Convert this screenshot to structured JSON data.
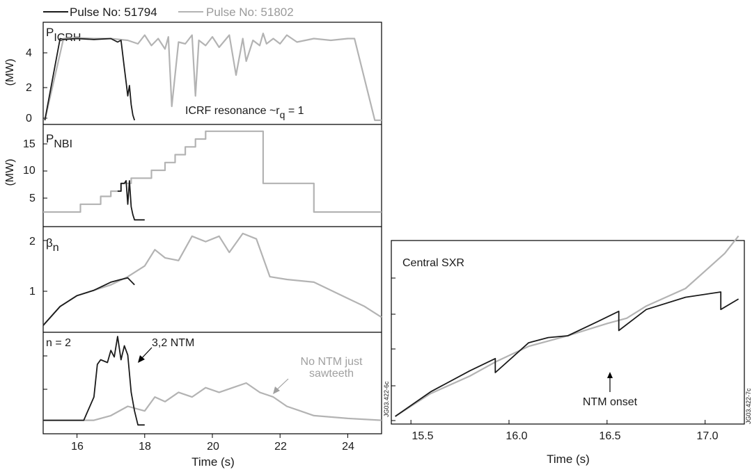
{
  "legend": {
    "pulse_a": "Pulse No: 51794",
    "pulse_b": "Pulse No: 51802"
  },
  "colors": {
    "pulse_a": "#1a1a1a",
    "pulse_b": "#b3b3b3"
  },
  "left_figure": {
    "xlabel": "Time (s)",
    "xticks": [
      "16",
      "18",
      "20",
      "22",
      "24"
    ],
    "xlim": [
      15,
      25
    ],
    "side_label": "JG03.422-6c",
    "panels": [
      {
        "title_main": "P",
        "title_sub": "ICRH",
        "ylabel": "(MW)",
        "yticks": [
          "0",
          "2",
          "4"
        ],
        "annotation": "ICRF resonance ~r",
        "annotation_sub": "q",
        "annotation_tail": " = 1"
      },
      {
        "title_main": "P",
        "title_sub": "NBI",
        "ylabel": "(MW)",
        "yticks": [
          "5",
          "10",
          "15"
        ]
      },
      {
        "title_main": "β",
        "title_sub": "n",
        "yticks": [
          "1",
          "2"
        ]
      },
      {
        "title_main": "n = 2",
        "title_sub": "",
        "annotation_a": "3,2 NTM",
        "annotation_b_line1": "No NTM just",
        "annotation_b_line2": "sawteeth"
      }
    ]
  },
  "right_figure": {
    "title": "Central SXR",
    "xlabel": "Time (s)",
    "xticks": [
      "15.5",
      "16.0",
      "16.5",
      "17.0"
    ],
    "annotation": "NTM onset",
    "side_label": "JG03.422-7c"
  },
  "chart_data": [
    {
      "type": "line",
      "title": "P ICRH",
      "ylabel": "(MW)",
      "xlim": [
        15,
        25
      ],
      "ylim": [
        0,
        5.4
      ],
      "series": [
        {
          "name": "Pulse No: 51794",
          "x": [
            15.05,
            15.5,
            15.6,
            16.0,
            16.5,
            17.0,
            17.2,
            17.3,
            17.35,
            17.4,
            17.45,
            17.5,
            17.55,
            17.6,
            17.65,
            17.7
          ],
          "y": [
            0,
            4.7,
            4.65,
            4.7,
            4.65,
            4.7,
            4.5,
            4.6,
            3.8,
            3.0,
            2.2,
            1.4,
            2.0,
            0.9,
            0.3,
            0.0
          ]
        },
        {
          "name": "Pulse No: 51802",
          "x": [
            15.05,
            15.6,
            16.0,
            16.5,
            17.0,
            17.5,
            17.8,
            18.0,
            18.2,
            18.4,
            18.6,
            18.7,
            18.8,
            19.0,
            19.2,
            19.4,
            19.5,
            19.6,
            19.8,
            20.0,
            20.2,
            20.5,
            20.7,
            20.9,
            21.0,
            21.2,
            21.4,
            21.5,
            21.6,
            21.8,
            22.0,
            22.2,
            22.5,
            23.0,
            23.5,
            24.0,
            24.2,
            24.8,
            25.0
          ],
          "y": [
            0,
            4.7,
            4.75,
            4.7,
            4.7,
            4.6,
            4.4,
            4.9,
            4.3,
            4.7,
            4.1,
            4.8,
            0.8,
            4.5,
            4.4,
            4.9,
            1.4,
            4.6,
            4.3,
            4.8,
            4.2,
            4.9,
            2.6,
            4.7,
            3.4,
            4.6,
            4.3,
            5.0,
            4.4,
            4.7,
            4.4,
            4.9,
            4.5,
            4.7,
            4.6,
            4.7,
            4.7,
            0.0,
            0.0
          ]
        }
      ]
    },
    {
      "type": "line",
      "title": "P NBI",
      "ylabel": "(MW)",
      "xlim": [
        15,
        25
      ],
      "ylim": [
        0,
        18
      ],
      "series": [
        {
          "name": "Pulse No: 51794",
          "x": [
            17.2,
            17.3,
            17.3,
            17.4,
            17.45,
            17.5,
            17.55,
            17.6,
            17.65,
            17.7,
            18.0
          ],
          "y": [
            6.0,
            6.0,
            7.5,
            7.5,
            8.0,
            3.5,
            8.0,
            3.0,
            1.5,
            0.5,
            0.5
          ]
        },
        {
          "name": "Pulse No: 51802",
          "x": [
            15.0,
            16.1,
            16.1,
            16.7,
            16.7,
            17.0,
            17.0,
            17.3,
            17.3,
            17.6,
            17.6,
            18.2,
            18.2,
            18.6,
            18.6,
            18.9,
            18.9,
            19.2,
            19.2,
            19.5,
            19.5,
            19.8,
            19.8,
            21.5,
            21.5,
            23.0,
            23.0,
            24.1,
            24.1,
            25.0
          ],
          "y": [
            2.0,
            2.0,
            3.5,
            3.5,
            5.0,
            5.0,
            6.0,
            6.0,
            7.5,
            7.5,
            8.5,
            8.5,
            10.0,
            10.0,
            11.5,
            11.5,
            13.0,
            13.0,
            14.5,
            14.5,
            16.0,
            16.0,
            17.5,
            17.5,
            7.5,
            7.5,
            2.0,
            2.0,
            2.0,
            2.0
          ]
        }
      ]
    },
    {
      "type": "line",
      "title": "β n",
      "xlim": [
        15,
        25
      ],
      "ylim": [
        0.35,
        2.15
      ],
      "series": [
        {
          "name": "Pulse No: 51794",
          "x": [
            15.0,
            15.5,
            16.0,
            16.5,
            17.0,
            17.3,
            17.5,
            17.7
          ],
          "y": [
            0.4,
            0.75,
            0.95,
            1.05,
            1.2,
            1.25,
            1.28,
            1.15
          ]
        },
        {
          "name": "Pulse No: 51802",
          "x": [
            15.0,
            15.5,
            16.0,
            16.5,
            17.0,
            17.5,
            18.0,
            18.3,
            18.6,
            19.0,
            19.4,
            19.8,
            20.2,
            20.5,
            20.9,
            21.3,
            21.7,
            22.2,
            23.0,
            24.0,
            24.5,
            25.0
          ],
          "y": [
            0.4,
            0.75,
            0.95,
            1.05,
            1.15,
            1.3,
            1.5,
            1.8,
            1.65,
            1.6,
            2.05,
            1.95,
            2.05,
            1.75,
            2.1,
            2.0,
            1.3,
            1.25,
            1.2,
            0.9,
            0.75,
            0.55
          ]
        }
      ]
    },
    {
      "type": "line",
      "title": "n = 2",
      "xlim": [
        15,
        25
      ],
      "ylim": [
        0,
        1
      ],
      "series": [
        {
          "name": "Pulse No: 51794",
          "x": [
            15.0,
            16.2,
            16.5,
            16.6,
            16.7,
            16.9,
            17.0,
            17.1,
            17.2,
            17.3,
            17.4,
            17.5,
            17.6,
            17.7,
            17.8,
            18.0
          ],
          "y": [
            0.1,
            0.1,
            0.35,
            0.7,
            0.75,
            0.72,
            0.85,
            0.78,
            1.0,
            0.75,
            0.9,
            0.8,
            0.4,
            0.2,
            0.05,
            0.05
          ]
        },
        {
          "name": "Pulse No: 51802",
          "x": [
            15.0,
            16.5,
            17.0,
            17.5,
            18.0,
            18.3,
            18.6,
            19.0,
            19.4,
            19.8,
            20.2,
            20.6,
            21.0,
            21.4,
            21.8,
            22.2,
            22.6,
            23.0,
            24.0,
            25.0
          ],
          "y": [
            0.1,
            0.1,
            0.15,
            0.25,
            0.2,
            0.35,
            0.3,
            0.4,
            0.35,
            0.45,
            0.4,
            0.45,
            0.5,
            0.4,
            0.35,
            0.25,
            0.2,
            0.15,
            0.12,
            0.1
          ]
        }
      ]
    },
    {
      "type": "line",
      "title": "Central SXR",
      "xlabel": "Time (s)",
      "xlim": [
        15.4,
        17.2
      ],
      "ylim": [
        0,
        1
      ],
      "series": [
        {
          "name": "Pulse No: 51794",
          "x": [
            15.42,
            15.6,
            15.8,
            15.93,
            15.93,
            16.1,
            16.2,
            16.3,
            16.45,
            16.56,
            16.56,
            16.7,
            16.9,
            17.08,
            17.08,
            17.17
          ],
          "y": [
            0.02,
            0.16,
            0.28,
            0.35,
            0.27,
            0.44,
            0.47,
            0.48,
            0.56,
            0.62,
            0.51,
            0.63,
            0.7,
            0.73,
            0.63,
            0.69
          ]
        },
        {
          "name": "Pulse No: 51802",
          "x": [
            15.42,
            15.6,
            15.8,
            15.93,
            16.1,
            16.3,
            16.5,
            16.6,
            16.7,
            16.9,
            17.0,
            17.1,
            17.17
          ],
          "y": [
            0.02,
            0.15,
            0.25,
            0.33,
            0.42,
            0.48,
            0.55,
            0.58,
            0.65,
            0.75,
            0.85,
            0.95,
            1.05
          ]
        }
      ]
    }
  ]
}
